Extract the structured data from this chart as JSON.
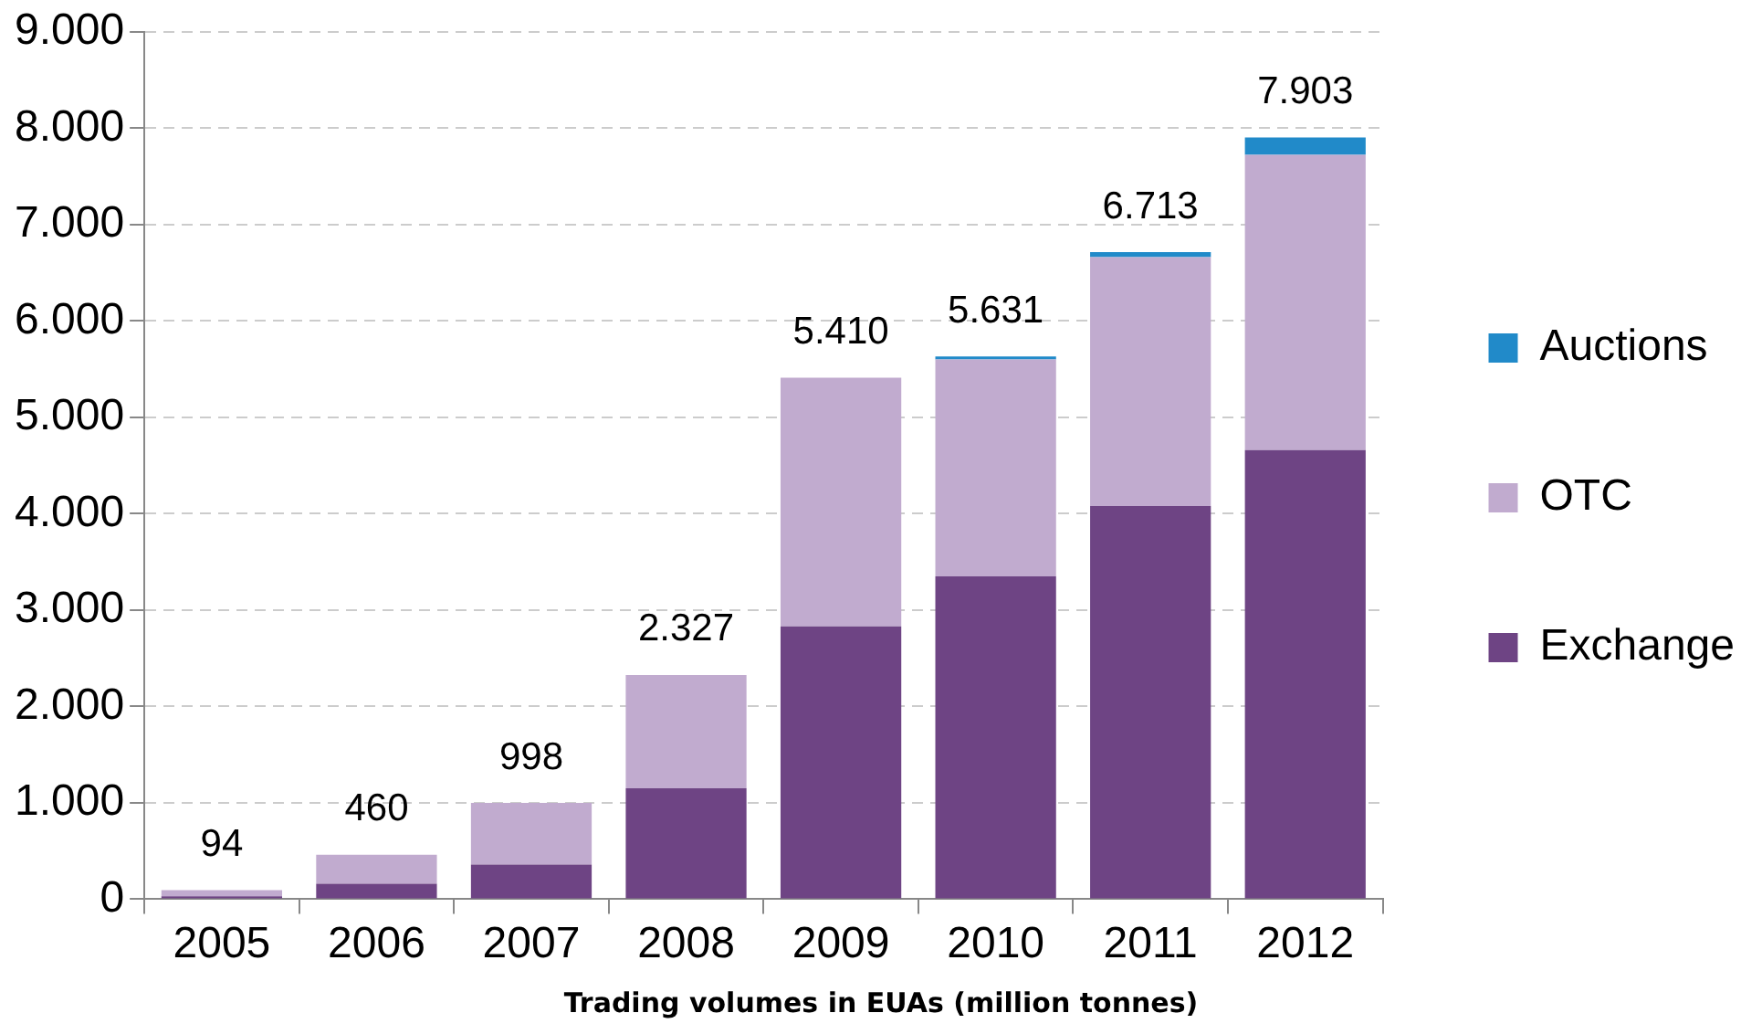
{
  "chart_data": {
    "type": "bar",
    "stacked": true,
    "xlabel": "Trading volumes in EUAs (million tonnes)",
    "categories": [
      "2005",
      "2006",
      "2007",
      "2008",
      "2009",
      "2010",
      "2011",
      "2012"
    ],
    "series": [
      {
        "name": "Exchange",
        "color": "#6e4484",
        "values": [
          30,
          160,
          360,
          1150,
          2830,
          3350,
          4080,
          4660
        ]
      },
      {
        "name": "OTC",
        "color": "#c1abcf",
        "values": [
          64,
          300,
          638,
          1177,
          2580,
          2251,
          2583,
          3063
        ]
      },
      {
        "name": "Auctions",
        "color": "#218ac9",
        "values": [
          0,
          0,
          0,
          0,
          0,
          30,
          50,
          180
        ]
      }
    ],
    "totals": [
      "94",
      "460",
      "998",
      "2.327",
      "5.410",
      "5.631",
      "6.713",
      "7.903"
    ],
    "ylim": [
      0,
      9000
    ],
    "yticks": [
      {
        "value": 0,
        "label": "0"
      },
      {
        "value": 1000,
        "label": "1.000"
      },
      {
        "value": 2000,
        "label": "2.000"
      },
      {
        "value": 3000,
        "label": "3.000"
      },
      {
        "value": 4000,
        "label": "4.000"
      },
      {
        "value": 5000,
        "label": "5.000"
      },
      {
        "value": 6000,
        "label": "6.000"
      },
      {
        "value": 7000,
        "label": "7.000"
      },
      {
        "value": 8000,
        "label": "8.000"
      },
      {
        "value": 9000,
        "label": "9.000"
      }
    ],
    "grid": "y",
    "legend": "right"
  }
}
